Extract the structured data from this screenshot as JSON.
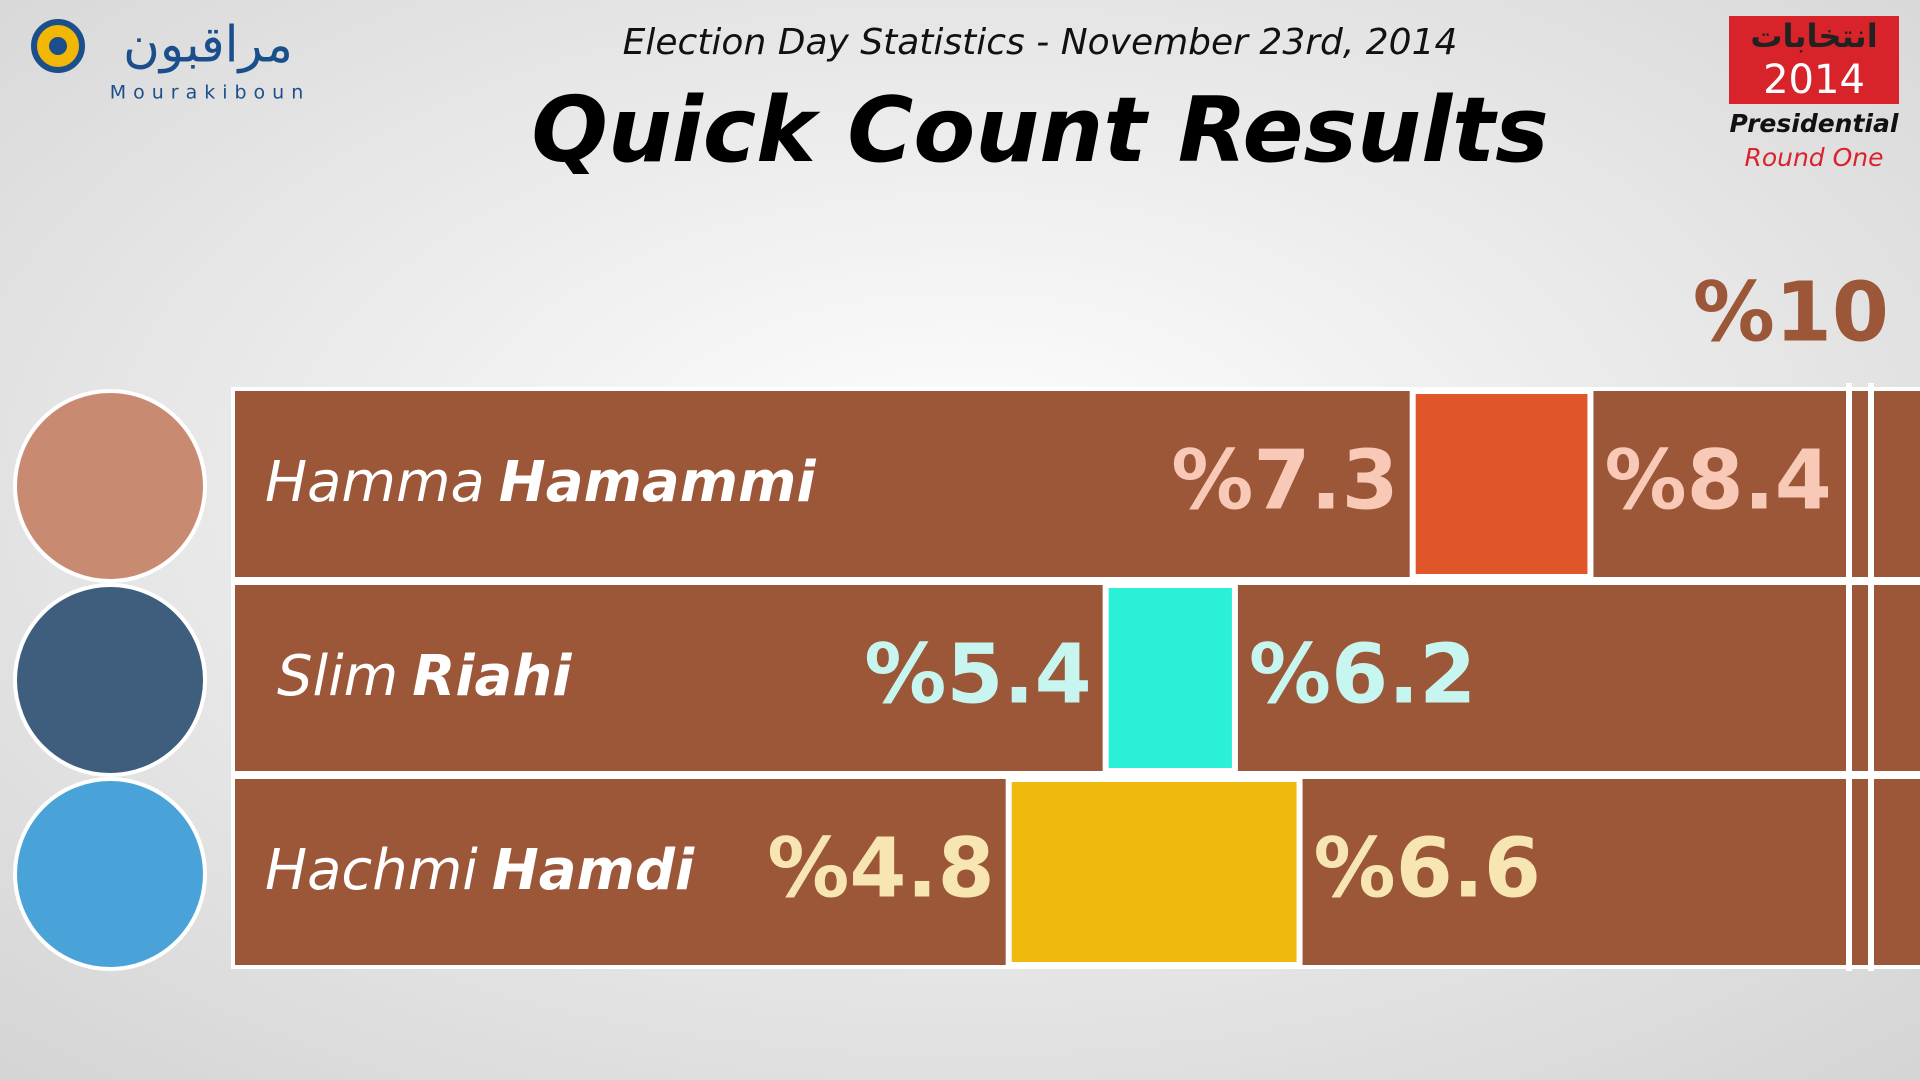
{
  "header": {
    "logo_arabic": "مراقبون",
    "logo_latin": "Mourakiboun",
    "badge_arabic": "انتخابات",
    "badge_year": "2014",
    "badge_election": "Presidential",
    "badge_round": "Round One"
  },
  "chart_data": {
    "type": "range-bar",
    "title": "Quick Count Results",
    "subtitle": "Election Day Statistics - November 23rd, 2014",
    "first_names": [
      "Hamma",
      "Slim",
      "Hachmi"
    ],
    "last_names": [
      "Hamammi",
      "Riahi",
      "Hamdi"
    ],
    "low": [
      7.3,
      5.4,
      4.8
    ],
    "low_labels": [
      "%7.3",
      "%5.4",
      "%4.8"
    ],
    "high": [
      8.4,
      6.2,
      6.6
    ],
    "high_labels": [
      "%8.4",
      "%6.2",
      "%6.6"
    ],
    "colors": [
      "#e0562a",
      "#2af0d8",
      "#f0b90e"
    ],
    "label_colors": [
      "#f8c9b6",
      "#c6f6ef",
      "#f8e6b2"
    ],
    "bar_color": "#9c5638",
    "xlim": [
      0,
      10
    ],
    "xticks": [
      {
        "value": 10,
        "label": "%10"
      }
    ]
  }
}
